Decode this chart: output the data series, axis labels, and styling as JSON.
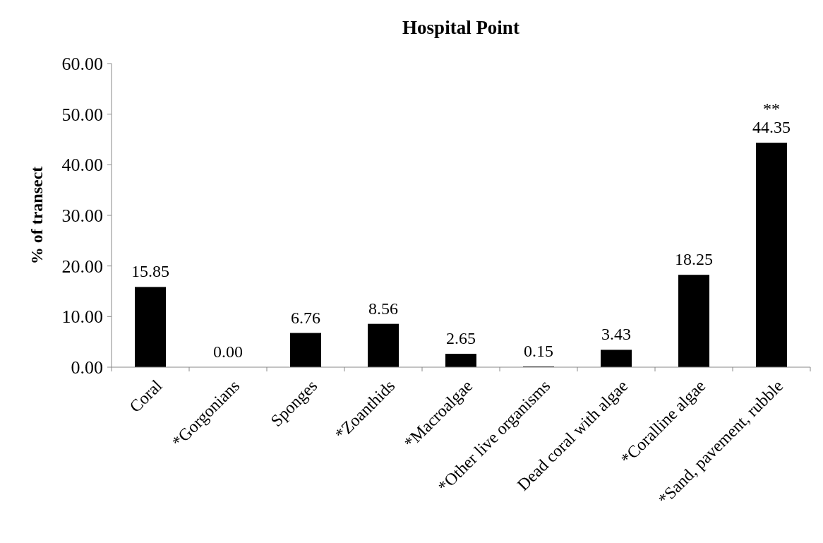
{
  "chart_data": {
    "type": "bar",
    "title": "Hospital Point",
    "ylabel": "% of transect",
    "categories": [
      "Coral",
      "*Gorgonians",
      "Sponges",
      "*Zoanthids",
      "*Macroalgae",
      "*Other live organisms",
      "Dead coral with algae",
      "*Coralline algae",
      "*Sand, pavement, rubble"
    ],
    "values": [
      15.85,
      0.0,
      6.76,
      8.56,
      2.65,
      0.15,
      3.43,
      18.25,
      44.35
    ],
    "value_labels": [
      "15.85",
      "0.00",
      "6.76",
      "8.56",
      "2.65",
      "0.15",
      "3.43",
      "18.25",
      "44.35"
    ],
    "color": "#000000",
    "ylim": [
      0,
      60
    ],
    "yticks": [
      {
        "value": 0,
        "label": "0.00"
      },
      {
        "value": 10,
        "label": "10.00"
      },
      {
        "value": 20,
        "label": "20.00"
      },
      {
        "value": 30,
        "label": "30.00"
      },
      {
        "value": 40,
        "label": "40.00"
      },
      {
        "value": 50,
        "label": "50.00"
      },
      {
        "value": 60,
        "label": "60.00"
      }
    ],
    "annotations": [
      {
        "text": "**",
        "x": "*Sand, pavement, rubble",
        "y": 44.35
      }
    ],
    "grid": false
  }
}
